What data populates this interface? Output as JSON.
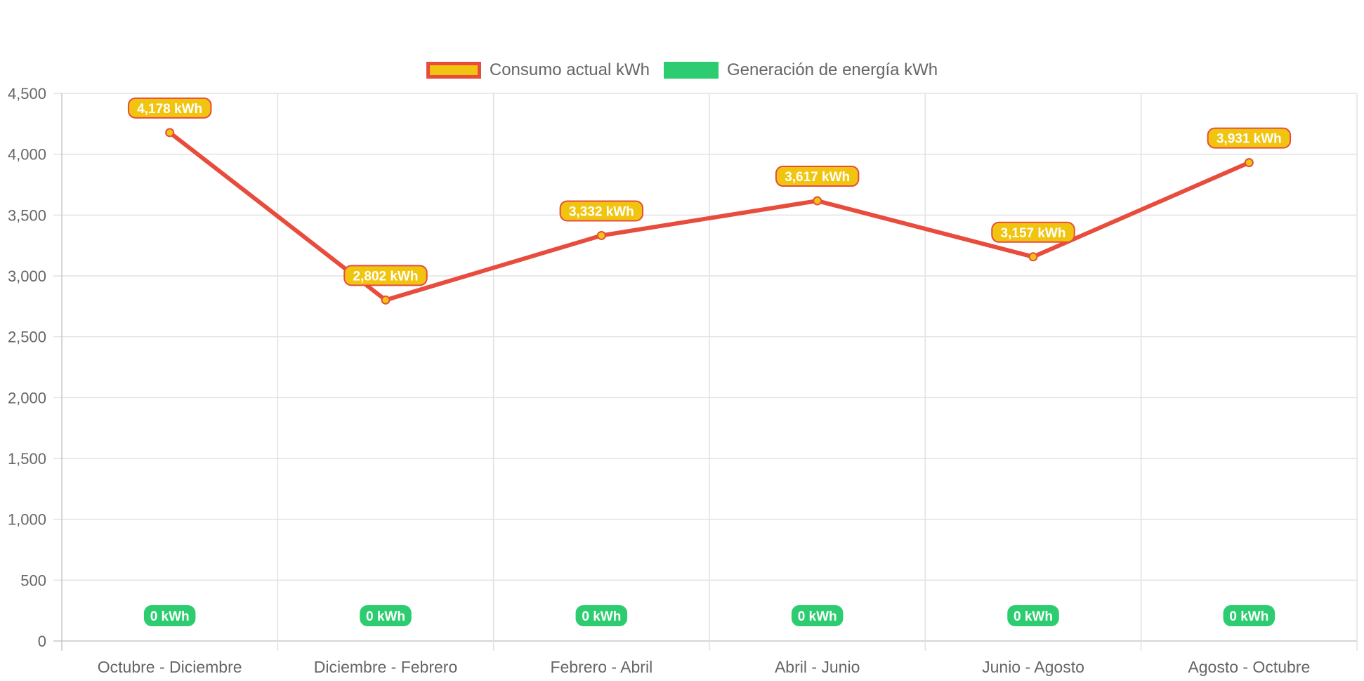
{
  "chart_data": {
    "type": "line",
    "categories": [
      "Octubre - Diciembre",
      "Diciembre - Febrero",
      "Febrero - Abril",
      "Abril - Junio",
      "Junio - Agosto",
      "Agosto - Octubre"
    ],
    "series": [
      {
        "name": "Consumo actual kWh",
        "values": [
          4178,
          2802,
          3332,
          3617,
          3157,
          3931
        ],
        "labels": [
          "4,178 kWh",
          "2,802 kWh",
          "3,332 kWh",
          "3,617 kWh",
          "3,157 kWh",
          "3,931 kWh"
        ],
        "color": "#e74c3c",
        "fill": "#f1c40f"
      },
      {
        "name": "Generación de energía kWh",
        "values": [
          0,
          0,
          0,
          0,
          0,
          0
        ],
        "labels": [
          "0 kWh",
          "0 kWh",
          "0 kWh",
          "0 kWh",
          "0 kWh",
          "0 kWh"
        ],
        "color": "#2ecc71",
        "fill": "#2ecc71"
      }
    ],
    "yticks": [
      "0",
      "500",
      "1,000",
      "1,500",
      "2,000",
      "2,500",
      "3,000",
      "3,500",
      "4,000",
      "4,500"
    ],
    "ylim": [
      0,
      4500
    ],
    "grid": true,
    "legend_position": "top"
  }
}
